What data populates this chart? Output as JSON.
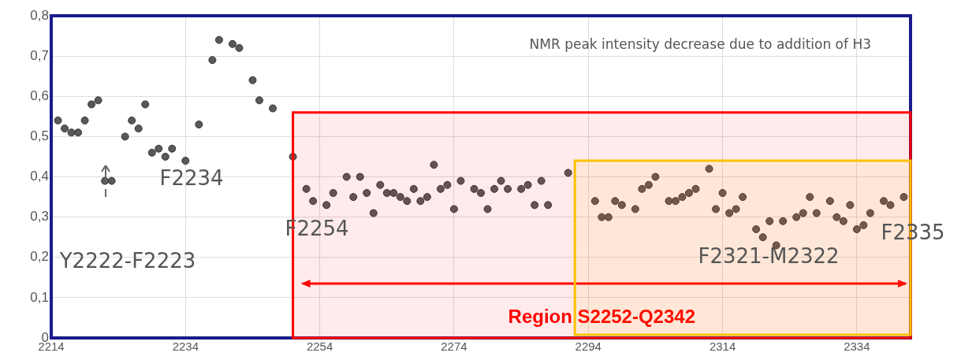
{
  "chart_data": {
    "type": "scatter",
    "title": "NMR peak intensity decrease due to addition of H3",
    "x": [
      2215,
      2216,
      2217,
      2218,
      2219,
      2220,
      2221,
      2222,
      2223,
      2225,
      2226,
      2227,
      2228,
      2229,
      2230,
      2231,
      2232,
      2234,
      2236,
      2238,
      2239,
      2241,
      2242,
      2244,
      2245,
      2247,
      2250,
      2252,
      2253,
      2255,
      2256,
      2258,
      2259,
      2260,
      2261,
      2262,
      2263,
      2264,
      2265,
      2266,
      2267,
      2268,
      2269,
      2270,
      2271,
      2272,
      2273,
      2274,
      2275,
      2277,
      2278,
      2279,
      2280,
      2281,
      2282,
      2284,
      2285,
      2286,
      2287,
      2288,
      2291,
      2295,
      2296,
      2297,
      2298,
      2299,
      2301,
      2302,
      2303,
      2304,
      2306,
      2307,
      2308,
      2309,
      2310,
      2312,
      2313,
      2314,
      2315,
      2316,
      2317,
      2319,
      2320,
      2321,
      2322,
      2323,
      2325,
      2326,
      2327,
      2328,
      2330,
      2331,
      2332,
      2333,
      2334,
      2335,
      2336,
      2338,
      2339,
      2341
    ],
    "series": [
      {
        "color": "#595959",
        "values": [
          0.54,
          0.52,
          0.51,
          0.51,
          0.54,
          0.58,
          0.59,
          0.39,
          0.39,
          0.5,
          0.54,
          0.52,
          0.58,
          0.46,
          0.47,
          0.45,
          0.47,
          0.44,
          0.53,
          0.69,
          0.74,
          0.73,
          0.72,
          0.64,
          0.59,
          0.57,
          0.45,
          0.37,
          0.34,
          0.33,
          0.36,
          0.4,
          0.35,
          0.4,
          0.36,
          0.31,
          0.38,
          0.36,
          0.36,
          0.35,
          0.34,
          0.37,
          0.34,
          0.35,
          0.43,
          0.37,
          0.38,
          0.32,
          0.39,
          0.37,
          0.36,
          0.32,
          0.37,
          0.39,
          0.37,
          0.37,
          0.38,
          0.33,
          0.39,
          0.33,
          0.41,
          0.34,
          0.3,
          0.3,
          0.34,
          0.33,
          0.32,
          0.37,
          0.38,
          0.4,
          0.34,
          0.34,
          0.35,
          0.36,
          0.37,
          0.42,
          0.32,
          0.36,
          0.31,
          0.32,
          0.35,
          0.27,
          0.25,
          0.29,
          0.23,
          0.29,
          0.3,
          0.31,
          0.35,
          0.31,
          0.34,
          0.3,
          0.29,
          0.33,
          0.27,
          0.28,
          0.31,
          0.34,
          0.33,
          0.35
        ]
      }
    ],
    "xlim": [
      2214,
      2342
    ],
    "xticks": [
      2214,
      2234,
      2254,
      2274,
      2294,
      2314,
      2334
    ],
    "ylim": [
      0,
      0.8
    ],
    "yticks": [
      {
        "value": 0,
        "label": "0"
      },
      {
        "value": 0.1,
        "label": "0,1"
      },
      {
        "value": 0.2,
        "label": "0,2"
      },
      {
        "value": 0.3,
        "label": "0,3"
      },
      {
        "value": 0.4,
        "label": "0,4"
      },
      {
        "value": 0.5,
        "label": "0,5"
      },
      {
        "value": 0.6,
        "label": "0,6"
      },
      {
        "value": 0.7,
        "label": "0,7"
      },
      {
        "value": 0.8,
        "label": "0,8"
      }
    ],
    "grid": true,
    "legend": false,
    "marker": "circle",
    "bands": [
      {
        "axis": "x",
        "from": 2250,
        "to": 2342,
        "label": "Region S2252-Q2342",
        "color": "#ff0000"
      },
      {
        "axis": "x",
        "from": 2292,
        "to": 2342,
        "color": "#ffc000"
      }
    ],
    "annotations": [
      "Y2222-F2223",
      "F2234",
      "F2254",
      "F2321-M2322",
      "F2335"
    ]
  }
}
